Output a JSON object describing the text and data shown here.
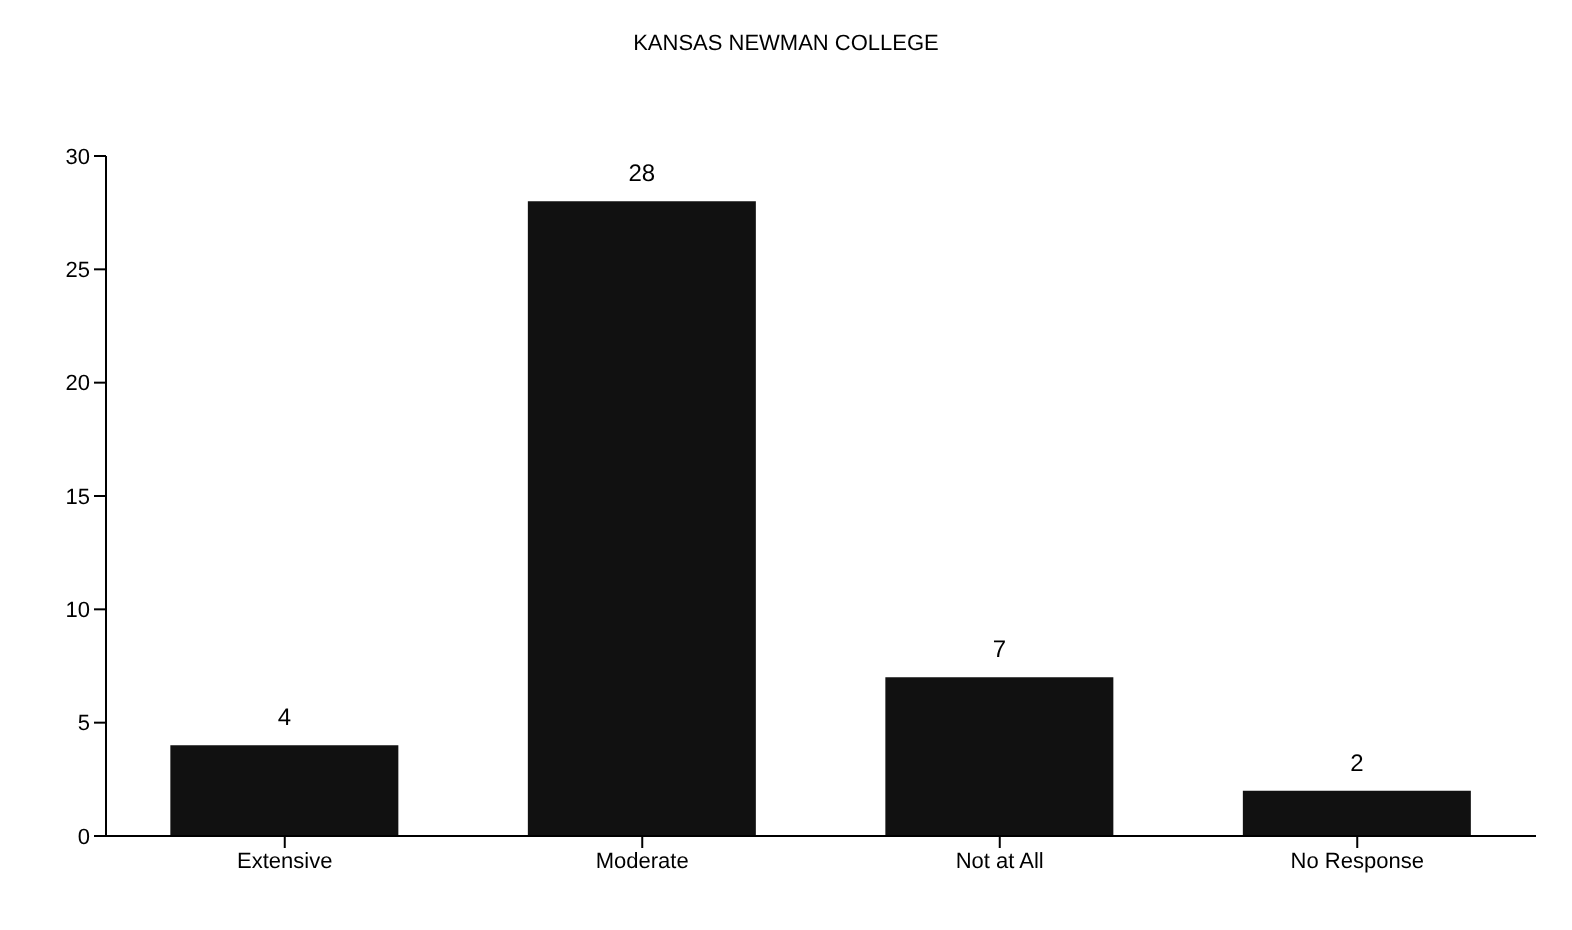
{
  "chart_data": {
    "type": "bar",
    "title": "KANSAS NEWMAN COLLEGE",
    "categories": [
      "Extensive",
      "Moderate",
      "Not at All",
      "No Response"
    ],
    "values": [
      4,
      28,
      7,
      2
    ],
    "color": "#111111",
    "ylim": [
      0,
      30
    ],
    "yticks": [
      0,
      5,
      10,
      15,
      20,
      25,
      30
    ],
    "grid": false,
    "legend": false,
    "data_labels": true
  }
}
